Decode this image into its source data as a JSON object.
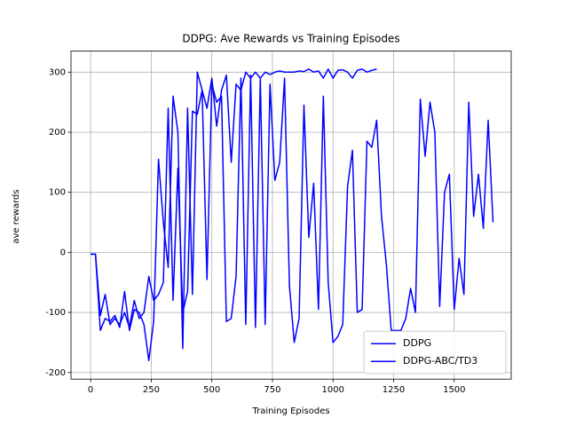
{
  "chart_data": {
    "type": "line",
    "title": "DDPG: Ave Rewards vs Training Episodes",
    "x_label": "Training Episodes",
    "y_label": "ave rewards",
    "xlim": [
      -81,
      1735
    ],
    "ylim": [
      -211,
      335
    ],
    "xticks": [
      0,
      250,
      500,
      750,
      1000,
      1250,
      1500
    ],
    "yticks": [
      -200,
      -100,
      0,
      100,
      200,
      300
    ],
    "grid": true,
    "legend": "lower right",
    "series": [
      {
        "name": "DDPG",
        "color": "#0000ff",
        "x": [
          0,
          20,
          40,
          60,
          80,
          100,
          120,
          140,
          160,
          180,
          200,
          220,
          240,
          260,
          280,
          300,
          320,
          340,
          360,
          380,
          400,
          420,
          440,
          460,
          480,
          500,
          520,
          540,
          560,
          580,
          600,
          620,
          640,
          660,
          680,
          700,
          720,
          740,
          760,
          780,
          800,
          820,
          840,
          860,
          880,
          900,
          920,
          940,
          960,
          980,
          1000,
          1020,
          1040,
          1060,
          1080,
          1100,
          1120,
          1140,
          1160,
          1180
        ],
        "values": [
          -3,
          -3,
          -105,
          -70,
          -120,
          -110,
          -120,
          -100,
          -125,
          -80,
          -110,
          -100,
          -40,
          -80,
          -70,
          -50,
          240,
          -80,
          140,
          -100,
          -65,
          235,
          230,
          270,
          240,
          290,
          210,
          270,
          295,
          150,
          280,
          270,
          300,
          290,
          300,
          290,
          300,
          296,
          300,
          302,
          300,
          300,
          300,
          302,
          301,
          305,
          300,
          302,
          290,
          305,
          290,
          303,
          304,
          300,
          290,
          303,
          305,
          300,
          303,
          305
        ]
      },
      {
        "name": "DDPG-ABC/TD3",
        "color": "#0000ff",
        "x": [
          0,
          20,
          40,
          60,
          80,
          100,
          120,
          140,
          160,
          180,
          200,
          220,
          240,
          260,
          280,
          300,
          320,
          340,
          360,
          380,
          400,
          420,
          440,
          460,
          480,
          500,
          520,
          540,
          560,
          580,
          600,
          620,
          640,
          660,
          680,
          700,
          720,
          740,
          760,
          780,
          800,
          820,
          840,
          860,
          880,
          900,
          920,
          940,
          960,
          980,
          1000,
          1020,
          1040,
          1060,
          1080,
          1100,
          1120,
          1140,
          1160,
          1180,
          1200,
          1220,
          1240,
          1260,
          1280,
          1300,
          1320,
          1340,
          1360,
          1380,
          1400,
          1420,
          1440,
          1460,
          1480,
          1500,
          1520,
          1540,
          1560,
          1580,
          1600,
          1620,
          1640,
          1660
        ],
        "values": [
          -3,
          -3,
          -130,
          -110,
          -115,
          -105,
          -125,
          -65,
          -130,
          -95,
          -100,
          -120,
          -180,
          -115,
          155,
          50,
          -25,
          260,
          200,
          -160,
          240,
          -70,
          300,
          270,
          -45,
          280,
          250,
          260,
          -115,
          -110,
          -40,
          290,
          -120,
          295,
          -125,
          290,
          -120,
          280,
          120,
          150,
          290,
          -55,
          -150,
          -110,
          245,
          25,
          115,
          -95,
          260,
          -50,
          -150,
          -140,
          -120,
          110,
          170,
          -100,
          -95,
          185,
          175,
          220,
          60,
          -20,
          -130,
          -130,
          -130,
          -110,
          -60,
          -100,
          255,
          160,
          250,
          200,
          -90,
          100,
          130,
          -95,
          -10,
          -70,
          250,
          60,
          130,
          40,
          220,
          50
        ]
      }
    ]
  }
}
